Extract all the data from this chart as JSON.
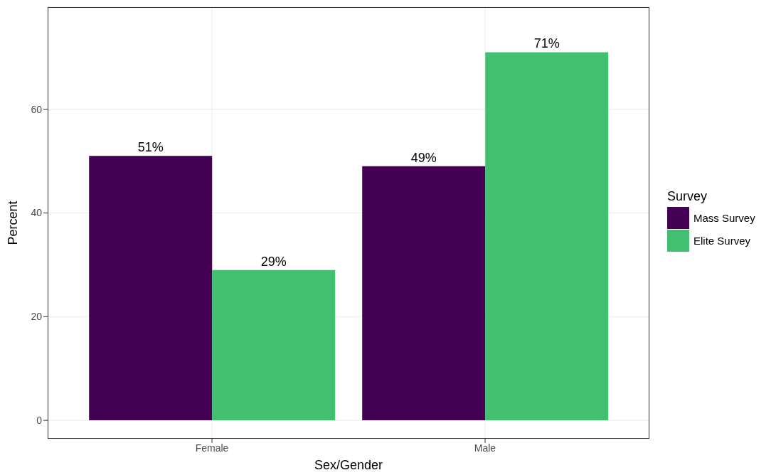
{
  "chart_data": {
    "type": "bar",
    "xlabel": "Sex/Gender",
    "ylabel": "Percent",
    "legend_title": "Survey",
    "categories": [
      "Female",
      "Male"
    ],
    "series": [
      {
        "name": "Mass Survey",
        "color": "#440154",
        "values": [
          51,
          49
        ],
        "value_labels": [
          "51%",
          "49%"
        ]
      },
      {
        "name": "Elite Survey",
        "color": "#43bf71",
        "values": [
          29,
          71
        ],
        "value_labels": [
          "29%",
          "71%"
        ]
      }
    ],
    "ylim": [
      -3.55,
      79.7
    ],
    "yticks": [
      0,
      20,
      40,
      60
    ],
    "grid": true,
    "legend": "right"
  }
}
